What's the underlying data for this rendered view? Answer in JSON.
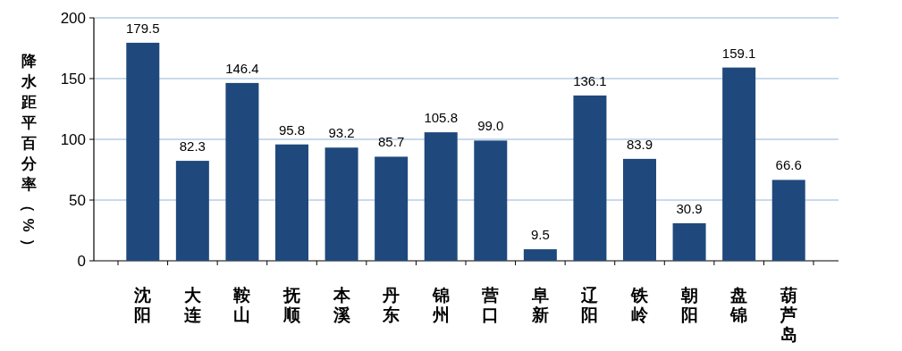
{
  "chart_data": {
    "type": "bar",
    "ylabel": "降水距平百分率（%）",
    "categories": [
      "沈阳",
      "大连",
      "鞍山",
      "抚顺",
      "本溪",
      "丹东",
      "锦州",
      "营口",
      "阜新",
      "辽阳",
      "铁岭",
      "朝阳",
      "盘锦",
      "葫芦岛"
    ],
    "values": [
      179.5,
      82.3,
      146.4,
      95.8,
      93.2,
      85.7,
      105.8,
      99.0,
      9.5,
      136.1,
      83.9,
      30.9,
      159.1,
      66.6
    ],
    "value_labels": [
      "179.5",
      "82.3",
      "146.4",
      "95.8",
      "93.2",
      "85.7",
      "105.8",
      "99.0",
      "9.5",
      "136.1",
      "83.9",
      "30.9",
      "159.1",
      "66.6"
    ],
    "color": "#1f497d",
    "ylim": [
      0,
      200
    ],
    "yticks": [
      0,
      50,
      100,
      150,
      200
    ],
    "grid": "y"
  }
}
